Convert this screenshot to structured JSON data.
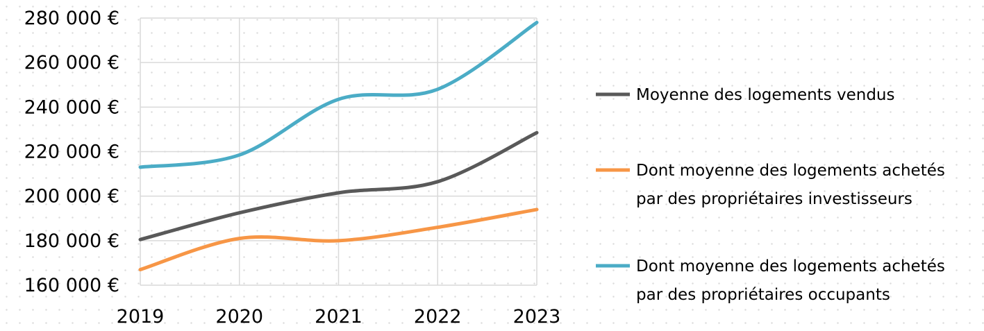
{
  "chart_data": {
    "type": "line",
    "title": "",
    "xlabel": "",
    "ylabel": "",
    "categories": [
      "2019",
      "2020",
      "2021",
      "2022",
      "2023"
    ],
    "ylim": [
      160000,
      280000
    ],
    "y_tick_values": [
      160000,
      180000,
      200000,
      220000,
      240000,
      260000,
      280000
    ],
    "y_tick_labels": [
      "160 000 €",
      "180 000 €",
      "200 000 €",
      "220 000 €",
      "240 000 €",
      "260 000 €",
      "280 000 €"
    ],
    "grid": true,
    "legend_position": "right",
    "series": [
      {
        "name": "Moyenne des logements vendus",
        "legend_lines": [
          "Moyenne des logements vendus"
        ],
        "color": "#595959",
        "values": [
          180500,
          192500,
          201500,
          206500,
          228500
        ]
      },
      {
        "name": "Dont moyenne des logements achetés par des propriétaires investisseurs",
        "legend_lines": [
          "Dont moyenne des logements achetés",
          "par des propriétaires investisseurs"
        ],
        "color": "#f79646",
        "values": [
          167000,
          181000,
          180000,
          186000,
          194000
        ]
      },
      {
        "name": "Dont moyenne des logements achetés par des propriétaires occupants",
        "legend_lines": [
          "Dont moyenne des logements achetés",
          "par des propriétaires occupants"
        ],
        "color": "#4bacc6",
        "values": [
          213000,
          218500,
          243500,
          248000,
          278000
        ]
      }
    ]
  }
}
